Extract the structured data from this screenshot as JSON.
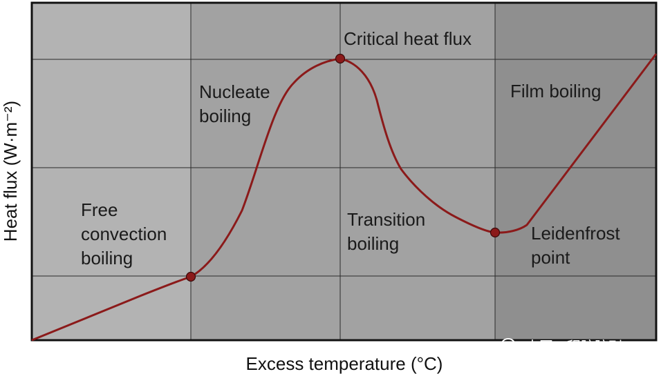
{
  "diagram": {
    "type": "boiling-curve",
    "xlabel": "Excess temperature (°C)",
    "ylabel": "Heat flux (W·m⁻²)",
    "regions": [
      {
        "id": "free-convection",
        "lines": [
          "Free",
          "convection",
          "boiling"
        ],
        "shade": "#b3b3b3"
      },
      {
        "id": "nucleate",
        "lines": [
          "Nucleate",
          "boiling"
        ],
        "shade": "#a2a2a2"
      },
      {
        "id": "transition",
        "lines": [
          "Transition",
          "boiling"
        ],
        "shade": "#a2a2a2"
      },
      {
        "id": "film",
        "lines": [
          "Film boiling"
        ],
        "shade": "#8f8f8f"
      }
    ],
    "points": [
      {
        "id": "onset-nucleate",
        "label": ""
      },
      {
        "id": "critical-heat-flux",
        "label": "Critical heat flux"
      },
      {
        "id": "leidenfrost",
        "lines": [
          "Leidenfrost",
          "point"
        ]
      }
    ],
    "curve_color": "#8b1a1a",
    "marker_color": "#8b1a1a",
    "grid_color": "#2a2a2a"
  },
  "watermark": {
    "text": "中国工程院院刊",
    "icon": "wechat-icon"
  }
}
